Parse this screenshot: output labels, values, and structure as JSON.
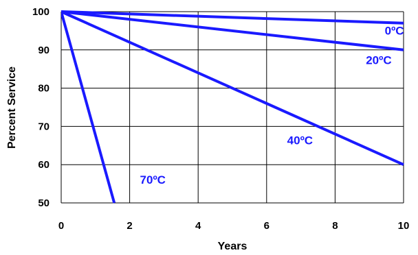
{
  "chart_data": {
    "type": "line",
    "xlabel": "Years",
    "ylabel": "Percent Service",
    "xlim": [
      0,
      10
    ],
    "ylim": [
      50,
      100
    ],
    "xticks": [
      0,
      2,
      4,
      6,
      8,
      10
    ],
    "yticks": [
      50,
      60,
      70,
      80,
      90,
      100
    ],
    "grid": true,
    "series_color": "#1a1aff",
    "series": [
      {
        "name": "0ºC",
        "x": [
          0,
          10
        ],
        "y": [
          100,
          97
        ]
      },
      {
        "name": "20ºC",
        "x": [
          0,
          10
        ],
        "y": [
          100,
          90
        ]
      },
      {
        "name": "40ºC",
        "x": [
          0,
          10
        ],
        "y": [
          100,
          60
        ]
      },
      {
        "name": "70ºC",
        "x": [
          0,
          1.55
        ],
        "y": [
          100,
          50
        ]
      }
    ]
  }
}
